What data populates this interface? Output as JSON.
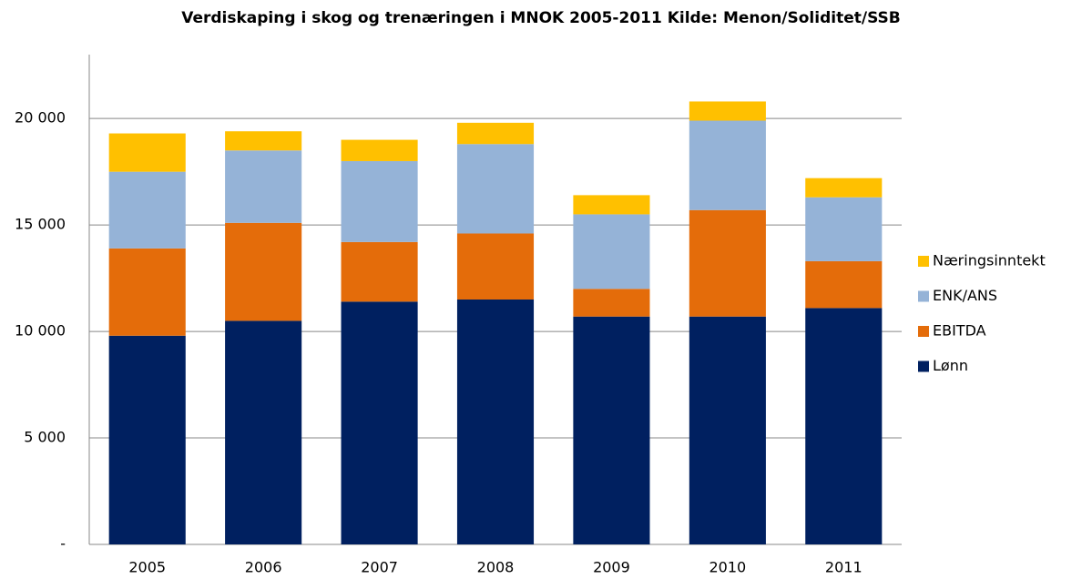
{
  "chart_data": {
    "type": "stacked_bar",
    "title": "Verdiskaping i skog og trenæringen i MNOK 2005-2011 Kilde: Menon/Soliditet/SSB",
    "categories": [
      "2005",
      "2006",
      "2007",
      "2008",
      "2009",
      "2010",
      "2011"
    ],
    "series": [
      {
        "name": "Lønn",
        "color": "#002060",
        "values": [
          9800,
          10500,
          11400,
          11500,
          10700,
          10700,
          11100
        ]
      },
      {
        "name": "EBITDA",
        "color": "#e46c0a",
        "values": [
          4100,
          4600,
          2800,
          3100,
          1300,
          5000,
          2200
        ]
      },
      {
        "name": "ENK/ANS",
        "color": "#95b3d7",
        "values": [
          3600,
          3400,
          3800,
          4200,
          3500,
          4200,
          3000
        ]
      },
      {
        "name": "Næringsinntekt",
        "color": "#ffc000",
        "values": [
          1800,
          900,
          1000,
          1000,
          900,
          900,
          900
        ]
      }
    ],
    "ylim": [
      0,
      23000
    ],
    "yticks": [
      {
        "value": 0,
        "label": "-"
      },
      {
        "value": 5000,
        "label": "5 000"
      },
      {
        "value": 10000,
        "label": "10 000"
      },
      {
        "value": 15000,
        "label": "15 000"
      },
      {
        "value": 20000,
        "label": "20 000"
      }
    ],
    "grid": true,
    "legend": "right"
  }
}
